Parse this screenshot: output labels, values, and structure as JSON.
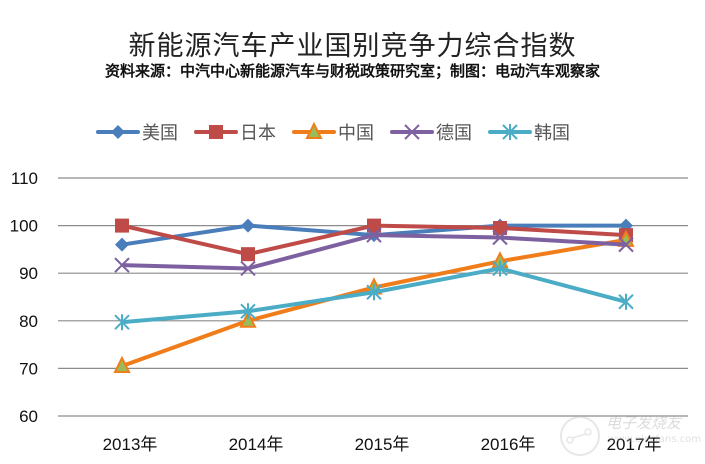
{
  "chart_data": {
    "type": "line",
    "title": "新能源汽车产业国别竞争力综合指数",
    "subtitle": "资料来源：中汽中心新能源汽车与财税政策研究室；制图：电动汽车观察家",
    "categories": [
      "2013年",
      "2014年",
      "2015年",
      "2016年",
      "2017年"
    ],
    "ylim": [
      60,
      110
    ],
    "yticks": [
      60,
      70,
      80,
      90,
      100,
      110
    ],
    "grid": true,
    "legend_position": "top",
    "xlabel": "",
    "ylabel": "",
    "series": [
      {
        "name": "美国",
        "color": "#4A7EBB",
        "marker": "diamond",
        "values": [
          96,
          100,
          98,
          100,
          100
        ]
      },
      {
        "name": "日本",
        "color": "#BE4B48",
        "marker": "square",
        "values": [
          100,
          94,
          100,
          99.5,
          98
        ]
      },
      {
        "name": "中国",
        "color": "#F07D1A",
        "marker": "triangle",
        "marker_fill": "#9BBB59",
        "values": [
          70.5,
          80,
          87,
          92.5,
          97
        ]
      },
      {
        "name": "德国",
        "color": "#7D60A0",
        "marker": "x",
        "values": [
          91.7,
          91,
          98,
          97.5,
          96
        ]
      },
      {
        "name": "韩国",
        "color": "#4BACC6",
        "marker": "star",
        "values": [
          79.7,
          82,
          86,
          91,
          84
        ]
      }
    ]
  },
  "watermark": {
    "text": "电子发烧友",
    "url": "www.elecfans.com"
  }
}
